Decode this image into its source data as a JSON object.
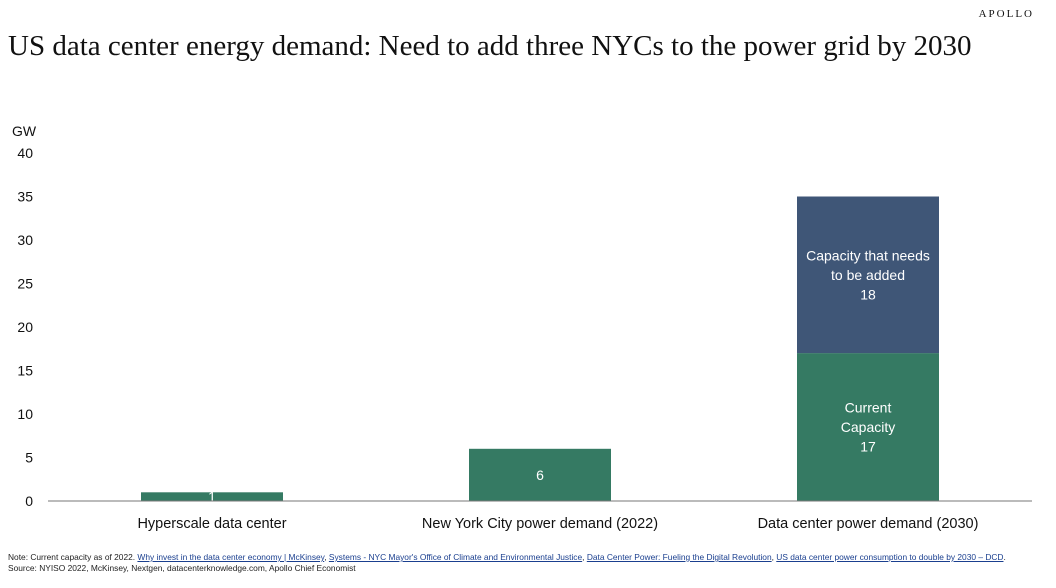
{
  "brand": "APOLLO",
  "title": "US data center energy demand: Need to add three NYCs to the power grid by 2030",
  "chart_data": {
    "type": "bar",
    "stacked": true,
    "ylabel": "GW",
    "ylim": [
      0,
      40
    ],
    "yticks": [
      0,
      5,
      10,
      15,
      20,
      25,
      30,
      35,
      40
    ],
    "grid": false,
    "categories": [
      "Hyperscale data center",
      "New York City power demand (2022)",
      "Data center power demand (2030)"
    ],
    "series": [
      {
        "name": "",
        "color": "#357a63",
        "values": [
          1,
          6,
          17
        ],
        "labels": [
          "1",
          "6",
          "Current\nCapacity\n17"
        ]
      },
      {
        "name": "",
        "color": "#3f5677",
        "values": [
          0,
          0,
          18
        ],
        "labels": [
          "",
          "",
          "Capacity that needs\nto be added\n18"
        ]
      }
    ]
  },
  "note": {
    "prefix": "Note: Current capacity as of 2022. ",
    "links": [
      "Why invest in the data center economy | McKinsey",
      "Systems - NYC Mayor's Office of Climate and Environmental Justice",
      "Data Center Power: Fueling the Digital Revolution",
      "US data center power consumption to double by 2030 – DCD"
    ],
    "source": ". Source: NYISO 2022, McKinsey, Nextgen, datacenterknowledge.com, Apollo Chief Economist"
  }
}
